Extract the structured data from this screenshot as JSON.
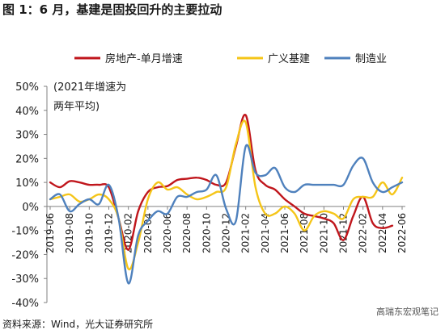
{
  "chart_data": {
    "type": "line",
    "title": "图 1：6 月，基建是固投回升的主要拉动",
    "x": [
      "2019-06",
      "2019-07",
      "2019-08",
      "2019-09",
      "2019-10",
      "2019-11",
      "2019-12",
      "2020-01",
      "2020-02",
      "2020-03",
      "2020-04",
      "2020-05",
      "2020-06",
      "2020-07",
      "2020-08",
      "2020-09",
      "2020-10",
      "2020-11",
      "2020-12",
      "2021-01",
      "2021-02",
      "2021-03",
      "2021-04",
      "2021-05",
      "2021-06",
      "2021-07",
      "2021-08",
      "2021-09",
      "2021-10",
      "2021-11",
      "2021-12",
      "2022-01",
      "2022-02",
      "2022-03",
      "2022-04",
      "2022-05",
      "2022-06"
    ],
    "xtick_labels": [
      "2019-06",
      "2019-08",
      "2019-10",
      "2019-12",
      "2020-02",
      "2020-04",
      "2020-06",
      "2020-08",
      "2020-10",
      "2020-12",
      "2021-02",
      "2021-04",
      "2021-06",
      "2021-08",
      "2021-10",
      "2021-12",
      "2022-02",
      "2022-04",
      "2022-06"
    ],
    "series": [
      {
        "name": "房地产-单月增速",
        "color": "#c0161c",
        "values": [
          10,
          8,
          10.5,
          10,
          9,
          9,
          8,
          -5,
          -18,
          -2,
          6,
          8,
          8.5,
          11,
          11.5,
          12,
          11,
          9,
          10,
          25,
          38,
          15,
          9,
          7,
          3,
          0,
          -3,
          -4,
          -5,
          -7,
          -14,
          -4,
          4,
          -7,
          -9,
          -8,
          null
        ]
      },
      {
        "name": "广义基建",
        "color": "#f5c518",
        "values": [
          3,
          4,
          5,
          2,
          3,
          5,
          3,
          -5,
          -26,
          -15,
          3,
          10,
          7,
          8,
          5,
          3,
          4,
          6,
          8,
          26,
          35,
          8,
          -3,
          -3,
          0,
          -3,
          -10,
          -4,
          -2,
          -3,
          -5,
          3,
          4,
          4,
          10,
          5,
          12
        ]
      },
      {
        "name": "制造业",
        "color": "#4f81bd",
        "values": [
          3,
          5,
          -2,
          1,
          3,
          1,
          9,
          -5,
          -32,
          -12,
          -6,
          -2,
          -3,
          4,
          4,
          6,
          7,
          13,
          -1,
          -6,
          25,
          14,
          13,
          16,
          8,
          6,
          9,
          9,
          9,
          9,
          9,
          17,
          20,
          10,
          6,
          8,
          10
        ]
      }
    ],
    "annotation": "(2021年增速为\n两年平均)",
    "annotation_lines": [
      "(2021年增速为",
      "两年平均)"
    ],
    "yticks": [
      50,
      40,
      30,
      20,
      10,
      0,
      -10,
      -20,
      -30,
      -40
    ],
    "ytick_labels": [
      "50%",
      "40%",
      "30%",
      "20%",
      "10%",
      "0%",
      "-10%",
      "-20%",
      "-30%",
      "-40%"
    ],
    "ylim": [
      -40,
      50
    ],
    "xlabel": "",
    "ylabel": "",
    "legend_position": "top",
    "grid": false
  },
  "source": "资料来源：Wind，光大证券研究所",
  "watermark": "高瑞东宏观笔记"
}
